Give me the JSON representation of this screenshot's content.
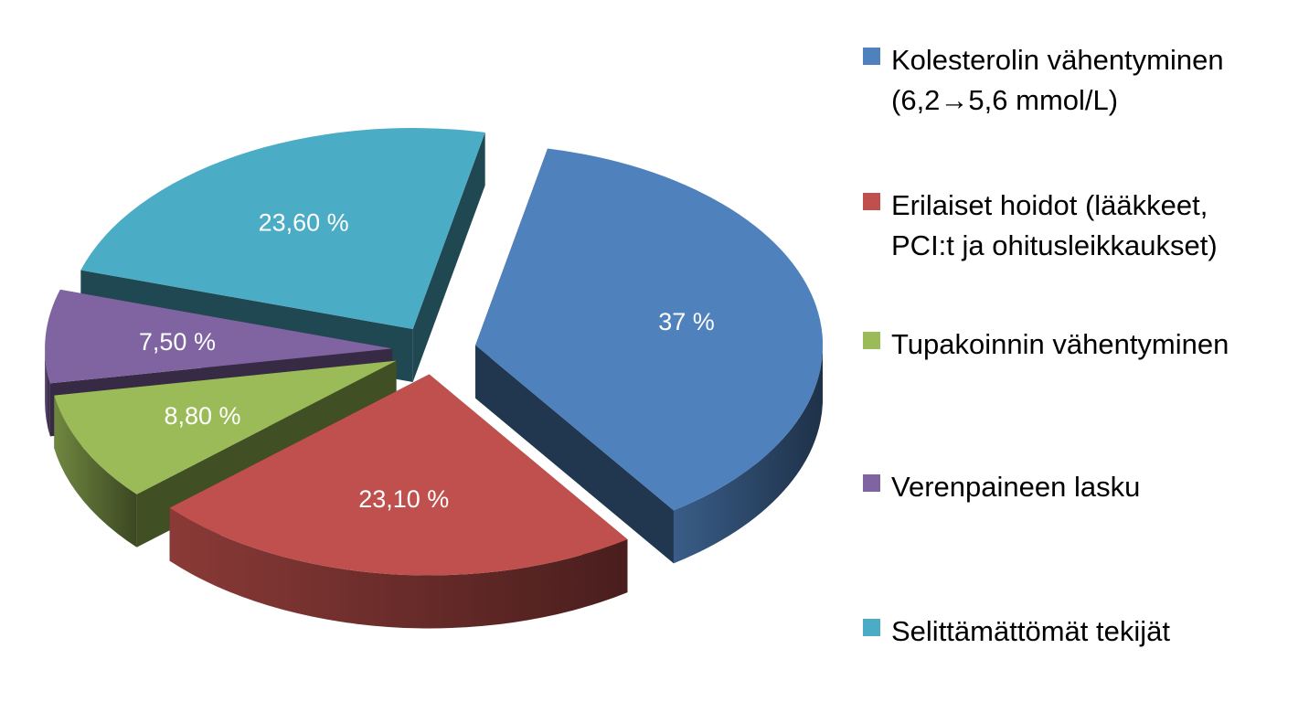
{
  "chart_data": {
    "type": "pie",
    "three_d": true,
    "exploded": true,
    "legend_position": "right",
    "slices": [
      {
        "name": "Kolesterolin vähentyminen\n(6,2→5,6 mmol/L)",
        "value": 37,
        "label": "37 %",
        "color": "#4F81BD"
      },
      {
        "name": "Erilaiset hoidot (lääkkeet,\nPCI:t ja ohitusleikkaukset)",
        "value": 23.1,
        "label": "23,10 %",
        "color": "#C0504D"
      },
      {
        "name": "Tupakoinnin vähentyminen",
        "value": 8.8,
        "label": "8,80 %",
        "color": "#9BBB59"
      },
      {
        "name": "Verenpaineen lasku",
        "value": 7.5,
        "label": "7,50 %",
        "color": "#8064A2"
      },
      {
        "name": "Selittämättömät tekijät",
        "value": 23.6,
        "label": "23,60 %",
        "color": "#4BACC6"
      }
    ]
  }
}
